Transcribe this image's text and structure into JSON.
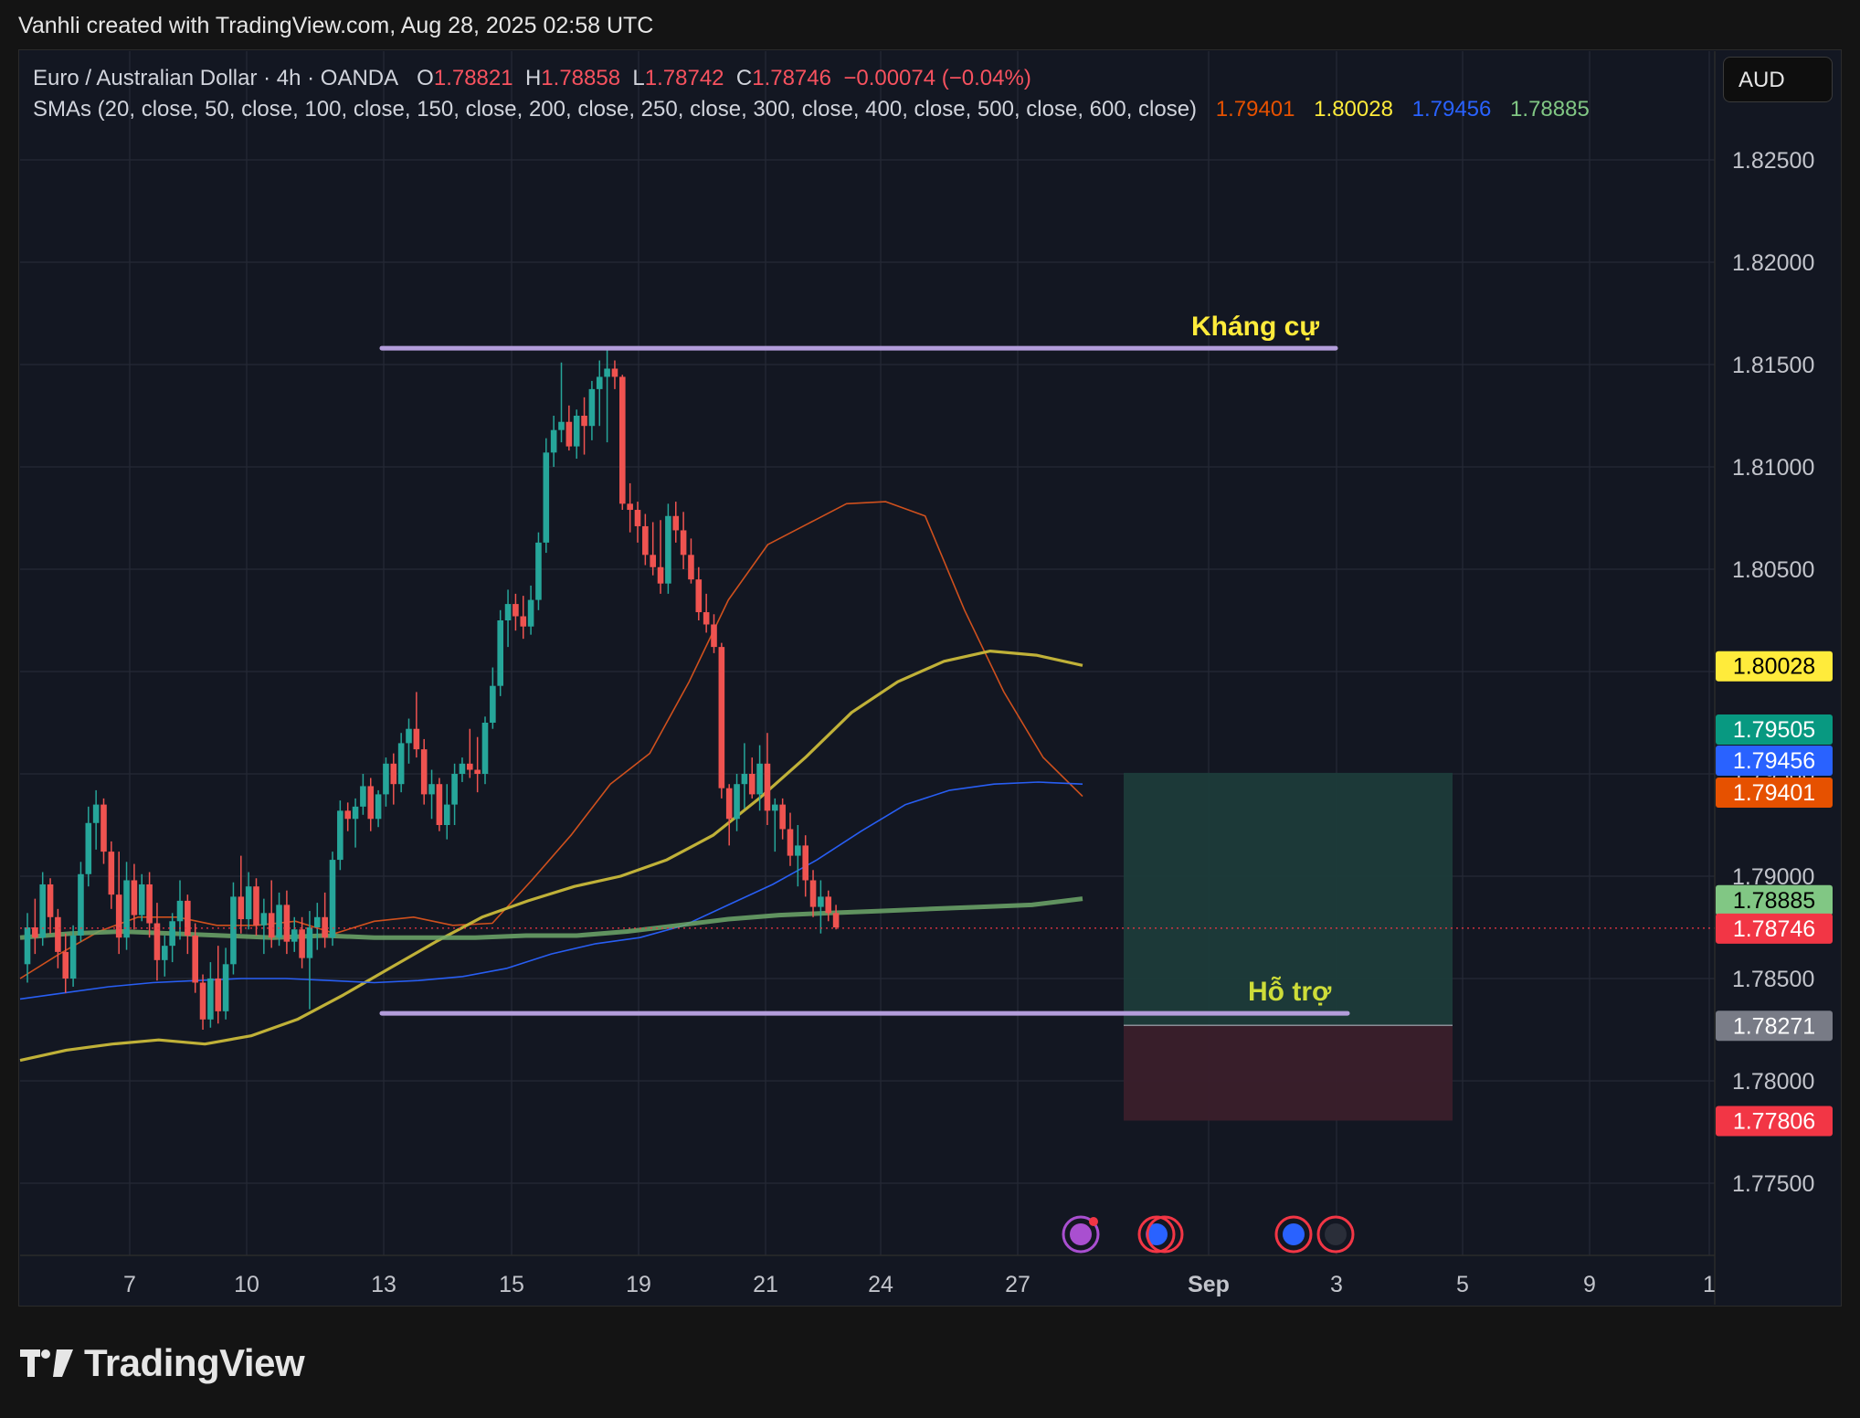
{
  "credit": "Vanhli created with TradingView.com, Aug 28, 2025 02:58 UTC",
  "legend": {
    "symbol": "Euro / Australian Dollar · 4h · OANDA",
    "o_label": "O",
    "o_value": "1.78821",
    "h_label": "H",
    "h_value": "1.78858",
    "l_label": "L",
    "l_value": "1.78742",
    "c_label": "C",
    "c_value": "1.78746",
    "change": "−0.00074 (−0.04%)",
    "sma_label": "SMAs (20, close, 50, close, 100, close, 150, close, 200, close, 250, close, 300, close, 400, close, 500, close, 600, close)",
    "sma_values": [
      "1.79401",
      "1.80028",
      "1.79456",
      "1.78885"
    ]
  },
  "currency_button": "AUD",
  "brand": "TradingView",
  "colors": {
    "background": "#131722",
    "up": "#26a69a",
    "down": "#ef5350",
    "sma_orange": "#d9531e",
    "sma_yellow": "#c9b93a",
    "sma_blue": "#2962ff",
    "sma_green": "#6ea86a",
    "level_line": "#b39ddb",
    "label_yellow": "#ffeb3b",
    "label_green": "#cddc39"
  },
  "chart_data": {
    "type": "candlestick",
    "title": "Euro / Australian Dollar · 4h · OANDA",
    "ylim": [
      1.7718,
      1.8295
    ],
    "y_ticks": [
      "1.82500",
      "1.82000",
      "1.81500",
      "1.81000",
      "1.80500",
      "1.80000",
      "1.79500",
      "1.79000",
      "1.78500",
      "1.78000",
      "1.77500"
    ],
    "y_tick_values": [
      1.825,
      1.82,
      1.815,
      1.81,
      1.805,
      1.8,
      1.795,
      1.79,
      1.785,
      1.78,
      1.775
    ],
    "x_ticks": [
      {
        "label": "7",
        "date": "2025-08-07"
      },
      {
        "label": "10",
        "date": "2025-08-10"
      },
      {
        "label": "13",
        "date": "2025-08-13"
      },
      {
        "label": "15",
        "date": "2025-08-15"
      },
      {
        "label": "19",
        "date": "2025-08-19"
      },
      {
        "label": "21",
        "date": "2025-08-21"
      },
      {
        "label": "24",
        "date": "2025-08-24"
      },
      {
        "label": "27",
        "date": "2025-08-27"
      },
      {
        "label": "Sep",
        "date": "2025-09-01"
      },
      {
        "label": "3",
        "date": "2025-09-03"
      },
      {
        "label": "5",
        "date": "2025-09-05"
      },
      {
        "label": "9",
        "date": "2025-09-09"
      },
      {
        "label": "1",
        "date": "2025-09-11"
      }
    ],
    "candles": [
      [
        1.7857,
        1.7882,
        1.7848,
        1.7875
      ],
      [
        1.7875,
        1.7889,
        1.7862,
        1.787
      ],
      [
        1.787,
        1.7902,
        1.7866,
        1.7896
      ],
      [
        1.7896,
        1.7899,
        1.7872,
        1.788
      ],
      [
        1.788,
        1.7884,
        1.7855,
        1.7863
      ],
      [
        1.7863,
        1.7872,
        1.7843,
        1.785
      ],
      [
        1.785,
        1.7876,
        1.7846,
        1.7871
      ],
      [
        1.7871,
        1.7907,
        1.7868,
        1.7901
      ],
      [
        1.7901,
        1.7934,
        1.7895,
        1.7926
      ],
      [
        1.7926,
        1.7942,
        1.7913,
        1.7935
      ],
      [
        1.7935,
        1.7938,
        1.7906,
        1.7912
      ],
      [
        1.7912,
        1.7917,
        1.7884,
        1.7891
      ],
      [
        1.7891,
        1.7912,
        1.7862,
        1.787
      ],
      [
        1.787,
        1.7907,
        1.7864,
        1.7898
      ],
      [
        1.7898,
        1.7906,
        1.7874,
        1.7881
      ],
      [
        1.7881,
        1.7901,
        1.7878,
        1.7896
      ],
      [
        1.7896,
        1.7902,
        1.787,
        1.7877
      ],
      [
        1.7877,
        1.7887,
        1.7849,
        1.7859
      ],
      [
        1.7859,
        1.7871,
        1.7851,
        1.7866
      ],
      [
        1.7866,
        1.7882,
        1.7858,
        1.7878
      ],
      [
        1.7878,
        1.7898,
        1.7869,
        1.7888
      ],
      [
        1.7888,
        1.7891,
        1.7862,
        1.7871
      ],
      [
        1.7871,
        1.7877,
        1.7843,
        1.7848
      ],
      [
        1.7848,
        1.7852,
        1.7825,
        1.783
      ],
      [
        1.783,
        1.7858,
        1.7826,
        1.785
      ],
      [
        1.785,
        1.7866,
        1.7828,
        1.7834
      ],
      [
        1.7834,
        1.7865,
        1.783,
        1.7857
      ],
      [
        1.7857,
        1.7897,
        1.7852,
        1.789
      ],
      [
        1.789,
        1.791,
        1.7872,
        1.7879
      ],
      [
        1.7879,
        1.7902,
        1.7874,
        1.7895
      ],
      [
        1.7895,
        1.7899,
        1.7871,
        1.7876
      ],
      [
        1.7876,
        1.7889,
        1.7862,
        1.7882
      ],
      [
        1.7882,
        1.7898,
        1.7865,
        1.787
      ],
      [
        1.787,
        1.7892,
        1.7866,
        1.7886
      ],
      [
        1.7886,
        1.7893,
        1.7862,
        1.7868
      ],
      [
        1.7868,
        1.788,
        1.7863,
        1.7874
      ],
      [
        1.7874,
        1.788,
        1.7855,
        1.786
      ],
      [
        1.786,
        1.7883,
        1.7835,
        1.7875
      ],
      [
        1.7875,
        1.7887,
        1.7864,
        1.788
      ],
      [
        1.788,
        1.7892,
        1.7865,
        1.787
      ],
      [
        1.787,
        1.7912,
        1.7866,
        1.7908
      ],
      [
        1.7908,
        1.7937,
        1.7903,
        1.7932
      ],
      [
        1.7932,
        1.7936,
        1.7922,
        1.7928
      ],
      [
        1.7928,
        1.7938,
        1.7914,
        1.7934
      ],
      [
        1.7934,
        1.795,
        1.793,
        1.7944
      ],
      [
        1.7944,
        1.7948,
        1.7922,
        1.7928
      ],
      [
        1.7928,
        1.7942,
        1.7924,
        1.794
      ],
      [
        1.794,
        1.7958,
        1.7934,
        1.7955
      ],
      [
        1.7955,
        1.796,
        1.7935,
        1.7945
      ],
      [
        1.7945,
        1.797,
        1.7941,
        1.7965
      ],
      [
        1.7965,
        1.7977,
        1.7955,
        1.7972
      ],
      [
        1.7972,
        1.799,
        1.7958,
        1.7962
      ],
      [
        1.7962,
        1.7967,
        1.7935,
        1.794
      ],
      [
        1.794,
        1.7952,
        1.7928,
        1.7945
      ],
      [
        1.7945,
        1.7948,
        1.7922,
        1.7925
      ],
      [
        1.7925,
        1.7945,
        1.7918,
        1.7935
      ],
      [
        1.7935,
        1.7955,
        1.7925,
        1.795
      ],
      [
        1.795,
        1.7958,
        1.7946,
        1.7955
      ],
      [
        1.7955,
        1.7972,
        1.7948,
        1.7952
      ],
      [
        1.7952,
        1.7968,
        1.7941,
        1.795
      ],
      [
        1.795,
        1.7978,
        1.7945,
        1.7975
      ],
      [
        1.7975,
        1.8002,
        1.7972,
        1.7993
      ],
      [
        1.7993,
        1.803,
        1.7988,
        1.8025
      ],
      [
        1.8025,
        1.804,
        1.8012,
        1.8033
      ],
      [
        1.8033,
        1.8038,
        1.802,
        1.8027
      ],
      [
        1.8027,
        1.8037,
        1.8016,
        1.8022
      ],
      [
        1.8022,
        1.8042,
        1.8018,
        1.8035
      ],
      [
        1.8035,
        1.8068,
        1.803,
        1.8063
      ],
      [
        1.8063,
        1.8114,
        1.8058,
        1.8107
      ],
      [
        1.8107,
        1.8125,
        1.81,
        1.8118
      ],
      [
        1.8118,
        1.8151,
        1.8112,
        1.8122
      ],
      [
        1.8122,
        1.813,
        1.8108,
        1.811
      ],
      [
        1.811,
        1.8128,
        1.8104,
        1.8125
      ],
      [
        1.8125,
        1.8134,
        1.8106,
        1.812
      ],
      [
        1.812,
        1.8142,
        1.8113,
        1.8138
      ],
      [
        1.8138,
        1.8152,
        1.812,
        1.8144
      ],
      [
        1.8144,
        1.8158,
        1.8112,
        1.8148
      ],
      [
        1.8148,
        1.8152,
        1.8138,
        1.8144
      ],
      [
        1.8144,
        1.8145,
        1.8079,
        1.8082
      ],
      [
        1.8082,
        1.8092,
        1.8068,
        1.8079
      ],
      [
        1.8079,
        1.8083,
        1.8063,
        1.8071
      ],
      [
        1.8071,
        1.8077,
        1.8052,
        1.8057
      ],
      [
        1.8057,
        1.8073,
        1.8047,
        1.8051
      ],
      [
        1.8051,
        1.8074,
        1.8038,
        1.8043
      ],
      [
        1.8043,
        1.8082,
        1.8038,
        1.8076
      ],
      [
        1.8076,
        1.8083,
        1.8063,
        1.8069
      ],
      [
        1.8069,
        1.8078,
        1.805,
        1.8057
      ],
      [
        1.8057,
        1.8065,
        1.8043,
        1.8045
      ],
      [
        1.8045,
        1.8051,
        1.8025,
        1.8029
      ],
      [
        1.8029,
        1.8038,
        1.8019,
        1.8023
      ],
      [
        1.8023,
        1.8028,
        1.8009,
        1.8012
      ],
      [
        1.8012,
        1.8014,
        1.7938,
        1.7943
      ],
      [
        1.7943,
        1.7945,
        1.7915,
        1.7928
      ],
      [
        1.7928,
        1.795,
        1.7922,
        1.7945
      ],
      [
        1.7945,
        1.7965,
        1.7933,
        1.795
      ],
      [
        1.795,
        1.7958,
        1.7938,
        1.794
      ],
      [
        1.794,
        1.7964,
        1.7932,
        1.7955
      ],
      [
        1.7955,
        1.797,
        1.7925,
        1.7932
      ],
      [
        1.7932,
        1.7938,
        1.7912,
        1.7935
      ],
      [
        1.7935,
        1.7938,
        1.7918,
        1.7923
      ],
      [
        1.7923,
        1.7931,
        1.7905,
        1.791
      ],
      [
        1.791,
        1.7925,
        1.7895,
        1.7915
      ],
      [
        1.7915,
        1.792,
        1.789,
        1.7898
      ],
      [
        1.7898,
        1.7903,
        1.788,
        1.7885
      ],
      [
        1.7885,
        1.7898,
        1.7872,
        1.789
      ],
      [
        1.789,
        1.7893,
        1.7878,
        1.7882
      ],
      [
        1.7882,
        1.7886,
        1.7874,
        1.7875
      ]
    ],
    "sma_series": [
      {
        "name": "",
        "color": "#d9531e",
        "values": [
          1.785,
          1.7862,
          1.7873,
          1.788,
          1.788,
          1.7876,
          1.7876,
          1.7878,
          1.7872,
          1.7878,
          1.788,
          1.7876,
          1.7877,
          1.7898,
          1.792,
          1.7945,
          1.796,
          1.7995,
          1.8035,
          1.8062,
          1.8072,
          1.8082,
          1.8083,
          1.8076,
          1.803,
          1.799,
          1.7958,
          1.7939
        ]
      },
      {
        "name": "",
        "color": "#c9b93a",
        "values": [
          1.781,
          1.7815,
          1.7818,
          1.782,
          1.7818,
          1.7822,
          1.783,
          1.7842,
          1.7855,
          1.7868,
          1.788,
          1.7888,
          1.7895,
          1.79,
          1.7908,
          1.792,
          1.7938,
          1.7958,
          1.798,
          1.7995,
          1.8005,
          1.801,
          1.8008,
          1.8003
        ]
      },
      {
        "name": "",
        "color": "#2962ff",
        "values": [
          1.784,
          1.7843,
          1.7846,
          1.7848,
          1.7849,
          1.785,
          1.785,
          1.7849,
          1.7848,
          1.7849,
          1.7851,
          1.7855,
          1.7862,
          1.7867,
          1.787,
          1.7876,
          1.7886,
          1.7896,
          1.7908,
          1.7922,
          1.7935,
          1.7942,
          1.7945,
          1.7946,
          1.7945
        ]
      },
      {
        "name": "",
        "color": "#6ea86a",
        "values": [
          1.787,
          1.7872,
          1.7873,
          1.7872,
          1.7871,
          1.787,
          1.7871,
          1.787,
          1.787,
          1.787,
          1.7871,
          1.7871,
          1.7873,
          1.7876,
          1.7879,
          1.7881,
          1.7882,
          1.7883,
          1.7884,
          1.7885,
          1.7886,
          1.7889
        ]
      }
    ],
    "price_labels": [
      {
        "value": 1.80028,
        "text": "1.80028",
        "bg": "#ffeb3b",
        "fg": "#000000"
      },
      {
        "value": 1.79505,
        "text": "1.79505",
        "bg": "#089981",
        "fg": "#ffffff"
      },
      {
        "value": 1.79456,
        "text": "1.79456",
        "bg": "#2962ff",
        "fg": "#ffffff"
      },
      {
        "value": 1.79401,
        "text": "1.79401",
        "bg": "#e65100",
        "fg": "#ffffff"
      },
      {
        "value": 1.78885,
        "text": "1.78885",
        "bg": "#81c784",
        "fg": "#000000"
      },
      {
        "value": 1.78746,
        "text": "1.78746",
        "bg": "#f23645",
        "fg": "#ffffff"
      },
      {
        "value": 1.78271,
        "text": "1.78271",
        "bg": "#787b86",
        "fg": "#ffffff"
      },
      {
        "value": 1.77806,
        "text": "1.77806",
        "bg": "#f23645",
        "fg": "#ffffff"
      }
    ],
    "levels": [
      {
        "value": 1.8158,
        "text": "Kháng cự"
      },
      {
        "value": 1.7833,
        "text": "Hỗ trợ"
      }
    ],
    "position": {
      "entry": 1.78271,
      "target": 1.79505,
      "stop": 1.77806
    },
    "current_price": 1.78746
  }
}
